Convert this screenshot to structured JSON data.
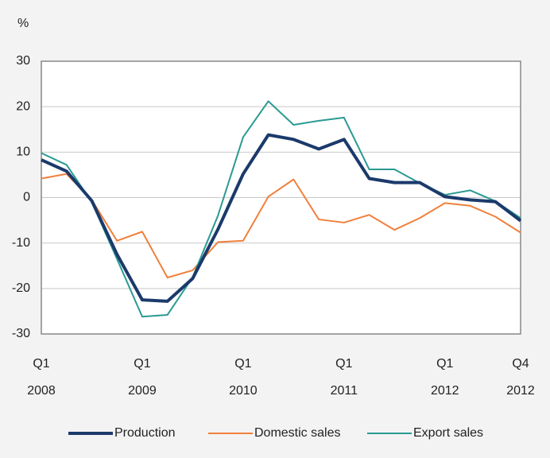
{
  "chart_data": {
    "type": "line",
    "y_label": "%",
    "categories": [
      [
        "Q1",
        "2008"
      ],
      null,
      null,
      null,
      [
        "Q1",
        "2009"
      ],
      null,
      null,
      null,
      [
        "Q1",
        "2010"
      ],
      null,
      null,
      null,
      [
        "Q1",
        "2011"
      ],
      null,
      null,
      null,
      [
        "Q1",
        "2012"
      ],
      null,
      null,
      [
        "Q4",
        "2012"
      ]
    ],
    "series": [
      {
        "name": "Production",
        "color": "#1b3a6b",
        "width": 4,
        "values": [
          8.3,
          5.8,
          -0.7,
          -12.5,
          -22.5,
          -22.8,
          -17.8,
          -7,
          5.2,
          13.8,
          12.8,
          10.7,
          12.8,
          4.2,
          3.3,
          3.3,
          0.2,
          -0.5,
          -0.9,
          -5.1
        ]
      },
      {
        "name": "Domestic sales",
        "color": "#f0803c",
        "width": 2,
        "values": [
          4.2,
          5.2,
          -0.5,
          -9.5,
          -7.5,
          -17.6,
          -16,
          -9.8,
          -9.5,
          0.2,
          4,
          -4.8,
          -5.5,
          -3.8,
          -7.1,
          -4.5,
          -1.2,
          -1.8,
          -4.2,
          -7.7
        ]
      },
      {
        "name": "Export sales",
        "color": "#2a9a92",
        "width": 2,
        "values": [
          9.8,
          7.2,
          -1,
          -13.5,
          -26.2,
          -25.8,
          -17.5,
          -4,
          13.3,
          21.2,
          16,
          16.9,
          17.6,
          6.2,
          6.2,
          3.2,
          0.6,
          1.6,
          -0.8,
          -4.5
        ]
      }
    ],
    "ylim": [
      -30,
      30
    ],
    "yticks": [
      -30,
      -20,
      -10,
      0,
      10,
      20,
      30
    ],
    "grid": true
  }
}
